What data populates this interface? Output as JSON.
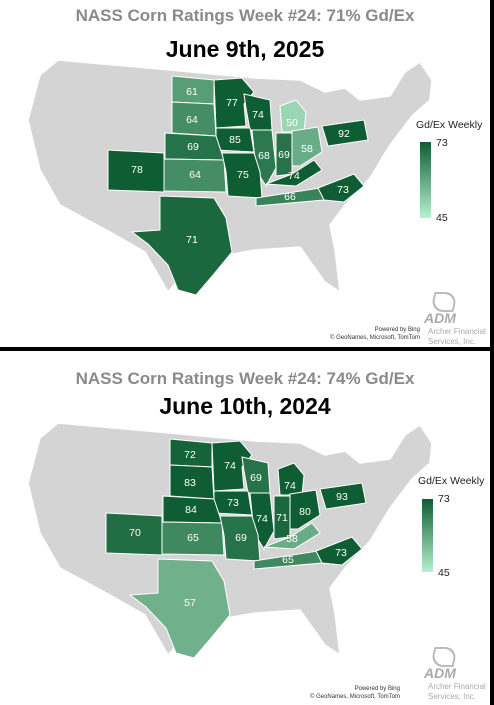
{
  "panels": [
    {
      "title": "NASS Corn Ratings Week #24: 71% Gd/Ex",
      "date": "June 9th, 2025",
      "legend": {
        "title": "Gd/Ex Weekly",
        "max": "73",
        "min": "45",
        "max_value": 73,
        "min_value": 45
      },
      "credits": {
        "line1": "Powered by Bing",
        "line2": "© GeoNames, Microsoft, TomTom"
      },
      "logo": {
        "brand": "ADM",
        "line1": "Archer Financial",
        "line2": "Services, Inc."
      },
      "states": [
        {
          "state": "ND",
          "value": 61
        },
        {
          "state": "MN",
          "value": 77
        },
        {
          "state": "WI",
          "value": 74
        },
        {
          "state": "MI",
          "value": 50
        },
        {
          "state": "SD",
          "value": 64
        },
        {
          "state": "IA",
          "value": 85
        },
        {
          "state": "NE",
          "value": 69
        },
        {
          "state": "IL",
          "value": 68
        },
        {
          "state": "IN",
          "value": 69
        },
        {
          "state": "OH",
          "value": 58
        },
        {
          "state": "PA",
          "value": 92
        },
        {
          "state": "CO",
          "value": 78
        },
        {
          "state": "KS",
          "value": 64
        },
        {
          "state": "MO",
          "value": 75
        },
        {
          "state": "KY",
          "value": 74
        },
        {
          "state": "TN",
          "value": 66
        },
        {
          "state": "NC",
          "value": 73
        },
        {
          "state": "TX",
          "value": 71
        }
      ]
    },
    {
      "title": "NASS Corn Ratings Week #24: 74% Gd/Ex",
      "date": "June 10th, 2024",
      "legend": {
        "title": "Gd/Ex Weekly",
        "max": "73",
        "min": "45",
        "max_value": 73,
        "min_value": 45
      },
      "credits": {
        "line1": "Powered by Bing",
        "line2": "© GeoNames, Microsoft, TomTom"
      },
      "logo": {
        "brand": "ADM",
        "line1": "Archer Financial",
        "line2": "Services, Inc."
      },
      "states": [
        {
          "state": "ND",
          "value": 72
        },
        {
          "state": "MN",
          "value": 74
        },
        {
          "state": "WI",
          "value": 69
        },
        {
          "state": "MI",
          "value": 74
        },
        {
          "state": "SD",
          "value": 83
        },
        {
          "state": "IA",
          "value": 73
        },
        {
          "state": "NE",
          "value": 84
        },
        {
          "state": "IL",
          "value": 74
        },
        {
          "state": "IN",
          "value": 71
        },
        {
          "state": "OH",
          "value": 80
        },
        {
          "state": "PA",
          "value": 93
        },
        {
          "state": "CO",
          "value": 70
        },
        {
          "state": "KS",
          "value": 65
        },
        {
          "state": "MO",
          "value": 69
        },
        {
          "state": "KY",
          "value": 58
        },
        {
          "state": "TN",
          "value": 65
        },
        {
          "state": "NC",
          "value": 73
        },
        {
          "state": "TX",
          "value": 57
        }
      ]
    }
  ]
}
